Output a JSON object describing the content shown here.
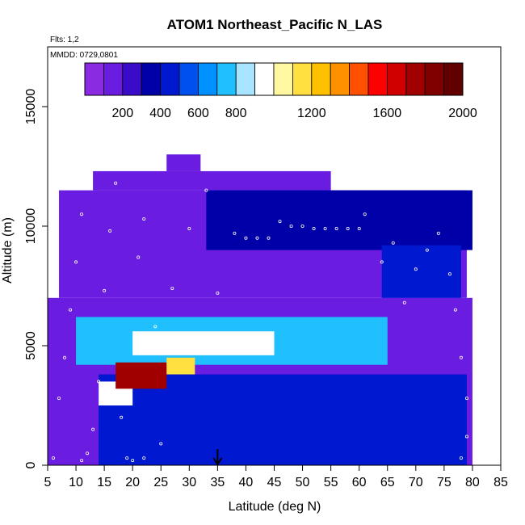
{
  "chart_data": {
    "type": "heatmap",
    "title": "ATOM1 Northeast_Pacific N_LAS",
    "subtitle_flights": "Flts: 1,2",
    "subtitle_dates": "MMDD: 0729,0801",
    "xlabel": "Latitude (deg N)",
    "ylabel": "Altitude (m)",
    "xlim": [
      5,
      85
    ],
    "ylim": [
      0,
      17500
    ],
    "x_ticks": [
      5,
      10,
      15,
      20,
      25,
      30,
      35,
      40,
      45,
      50,
      55,
      60,
      65,
      70,
      75,
      80,
      85
    ],
    "x_tick_labels": [
      "5",
      "10",
      "15",
      "20",
      "25",
      "30",
      "35",
      "40",
      "45",
      "50",
      "55",
      "60",
      "65",
      "70",
      "75",
      "80",
      "85"
    ],
    "y_ticks": [
      0,
      5000,
      10000,
      15000
    ],
    "y_tick_labels": [
      "0",
      "5000",
      "10000",
      "15000"
    ],
    "colorbar": {
      "range": [
        0,
        2000
      ],
      "tick_values": [
        200,
        400,
        600,
        800,
        1200,
        1600,
        2000
      ],
      "tick_labels": [
        "200",
        "400",
        "600",
        "800",
        "1200",
        "1600",
        "2000"
      ],
      "colors": [
        "#8a2be2",
        "#6a1de0",
        "#3a0cc8",
        "#0000a8",
        "#0018d0",
        "#0050f0",
        "#0090ff",
        "#20c0ff",
        "#a8e4ff",
        "#ffffff",
        "#fff8a0",
        "#ffe040",
        "#ffc000",
        "#ff9000",
        "#ff5000",
        "#ff0000",
        "#d00000",
        "#a00000",
        "#800000",
        "#600000"
      ]
    },
    "grid": false,
    "marker": {
      "type": "arrow-down",
      "latitude": 35,
      "altitude": 0
    },
    "regions": [
      {
        "lat": [
          5,
          80
        ],
        "alt": [
          0,
          7000
        ],
        "value": 150
      },
      {
        "lat": [
          7,
          79
        ],
        "alt": [
          7000,
          11500
        ],
        "value": 130
      },
      {
        "lat": [
          13,
          55
        ],
        "alt": [
          11500,
          12300
        ],
        "value": 120
      },
      {
        "lat": [
          26,
          32
        ],
        "alt": [
          12300,
          13000
        ],
        "value": 110
      },
      {
        "lat": [
          33,
          80
        ],
        "alt": [
          9000,
          11500
        ],
        "value": 300
      },
      {
        "lat": [
          64,
          78
        ],
        "alt": [
          7000,
          9200
        ],
        "value": 400
      },
      {
        "lat": [
          14,
          79
        ],
        "alt": [
          0,
          3800
        ],
        "value": 450
      },
      {
        "lat": [
          10,
          65
        ],
        "alt": [
          4200,
          6200
        ],
        "value": 700
      },
      {
        "lat": [
          20,
          45
        ],
        "alt": [
          4600,
          5600
        ],
        "value": 900
      },
      {
        "lat": [
          14,
          20
        ],
        "alt": [
          2500,
          3500
        ],
        "value": 900
      },
      {
        "lat": [
          17,
          26
        ],
        "alt": [
          3200,
          4300
        ],
        "value": 1700
      },
      {
        "lat": [
          26,
          31
        ],
        "alt": [
          3800,
          4500
        ],
        "value": 1150
      }
    ],
    "points": [
      {
        "lat": 7,
        "alt": 2800
      },
      {
        "lat": 8,
        "alt": 4500
      },
      {
        "lat": 9,
        "alt": 6500
      },
      {
        "lat": 10,
        "alt": 8500
      },
      {
        "lat": 11,
        "alt": 10500
      },
      {
        "lat": 12,
        "alt": 500
      },
      {
        "lat": 13,
        "alt": 1500
      },
      {
        "lat": 14,
        "alt": 3500
      },
      {
        "lat": 15,
        "alt": 7300
      },
      {
        "lat": 16,
        "alt": 9800
      },
      {
        "lat": 17,
        "alt": 11800
      },
      {
        "lat": 18,
        "alt": 2000
      },
      {
        "lat": 19,
        "alt": 300
      },
      {
        "lat": 21,
        "alt": 8700
      },
      {
        "lat": 22,
        "alt": 10300
      },
      {
        "lat": 24,
        "alt": 5800
      },
      {
        "lat": 25,
        "alt": 900
      },
      {
        "lat": 27,
        "alt": 7400
      },
      {
        "lat": 30,
        "alt": 9900
      },
      {
        "lat": 33,
        "alt": 11500
      },
      {
        "lat": 35,
        "alt": 7200
      },
      {
        "lat": 38,
        "alt": 9700
      },
      {
        "lat": 40,
        "alt": 9500
      },
      {
        "lat": 42,
        "alt": 9500
      },
      {
        "lat": 44,
        "alt": 9500
      },
      {
        "lat": 46,
        "alt": 10200
      },
      {
        "lat": 48,
        "alt": 10000
      },
      {
        "lat": 50,
        "alt": 10000
      },
      {
        "lat": 52,
        "alt": 9900
      },
      {
        "lat": 54,
        "alt": 9900
      },
      {
        "lat": 56,
        "alt": 9900
      },
      {
        "lat": 58,
        "alt": 9900
      },
      {
        "lat": 60,
        "alt": 9900
      },
      {
        "lat": 61,
        "alt": 10500
      },
      {
        "lat": 64,
        "alt": 8500
      },
      {
        "lat": 66,
        "alt": 9300
      },
      {
        "lat": 68,
        "alt": 6800
      },
      {
        "lat": 70,
        "alt": 8200
      },
      {
        "lat": 72,
        "alt": 9000
      },
      {
        "lat": 74,
        "alt": 9700
      },
      {
        "lat": 76,
        "alt": 8000
      },
      {
        "lat": 77,
        "alt": 6500
      },
      {
        "lat": 78,
        "alt": 4500
      },
      {
        "lat": 79,
        "alt": 2800
      },
      {
        "lat": 79,
        "alt": 1200
      },
      {
        "lat": 78,
        "alt": 300
      },
      {
        "lat": 6,
        "alt": 300
      },
      {
        "lat": 11,
        "alt": 200
      },
      {
        "lat": 20,
        "alt": 200
      },
      {
        "lat": 22,
        "alt": 300
      }
    ]
  }
}
